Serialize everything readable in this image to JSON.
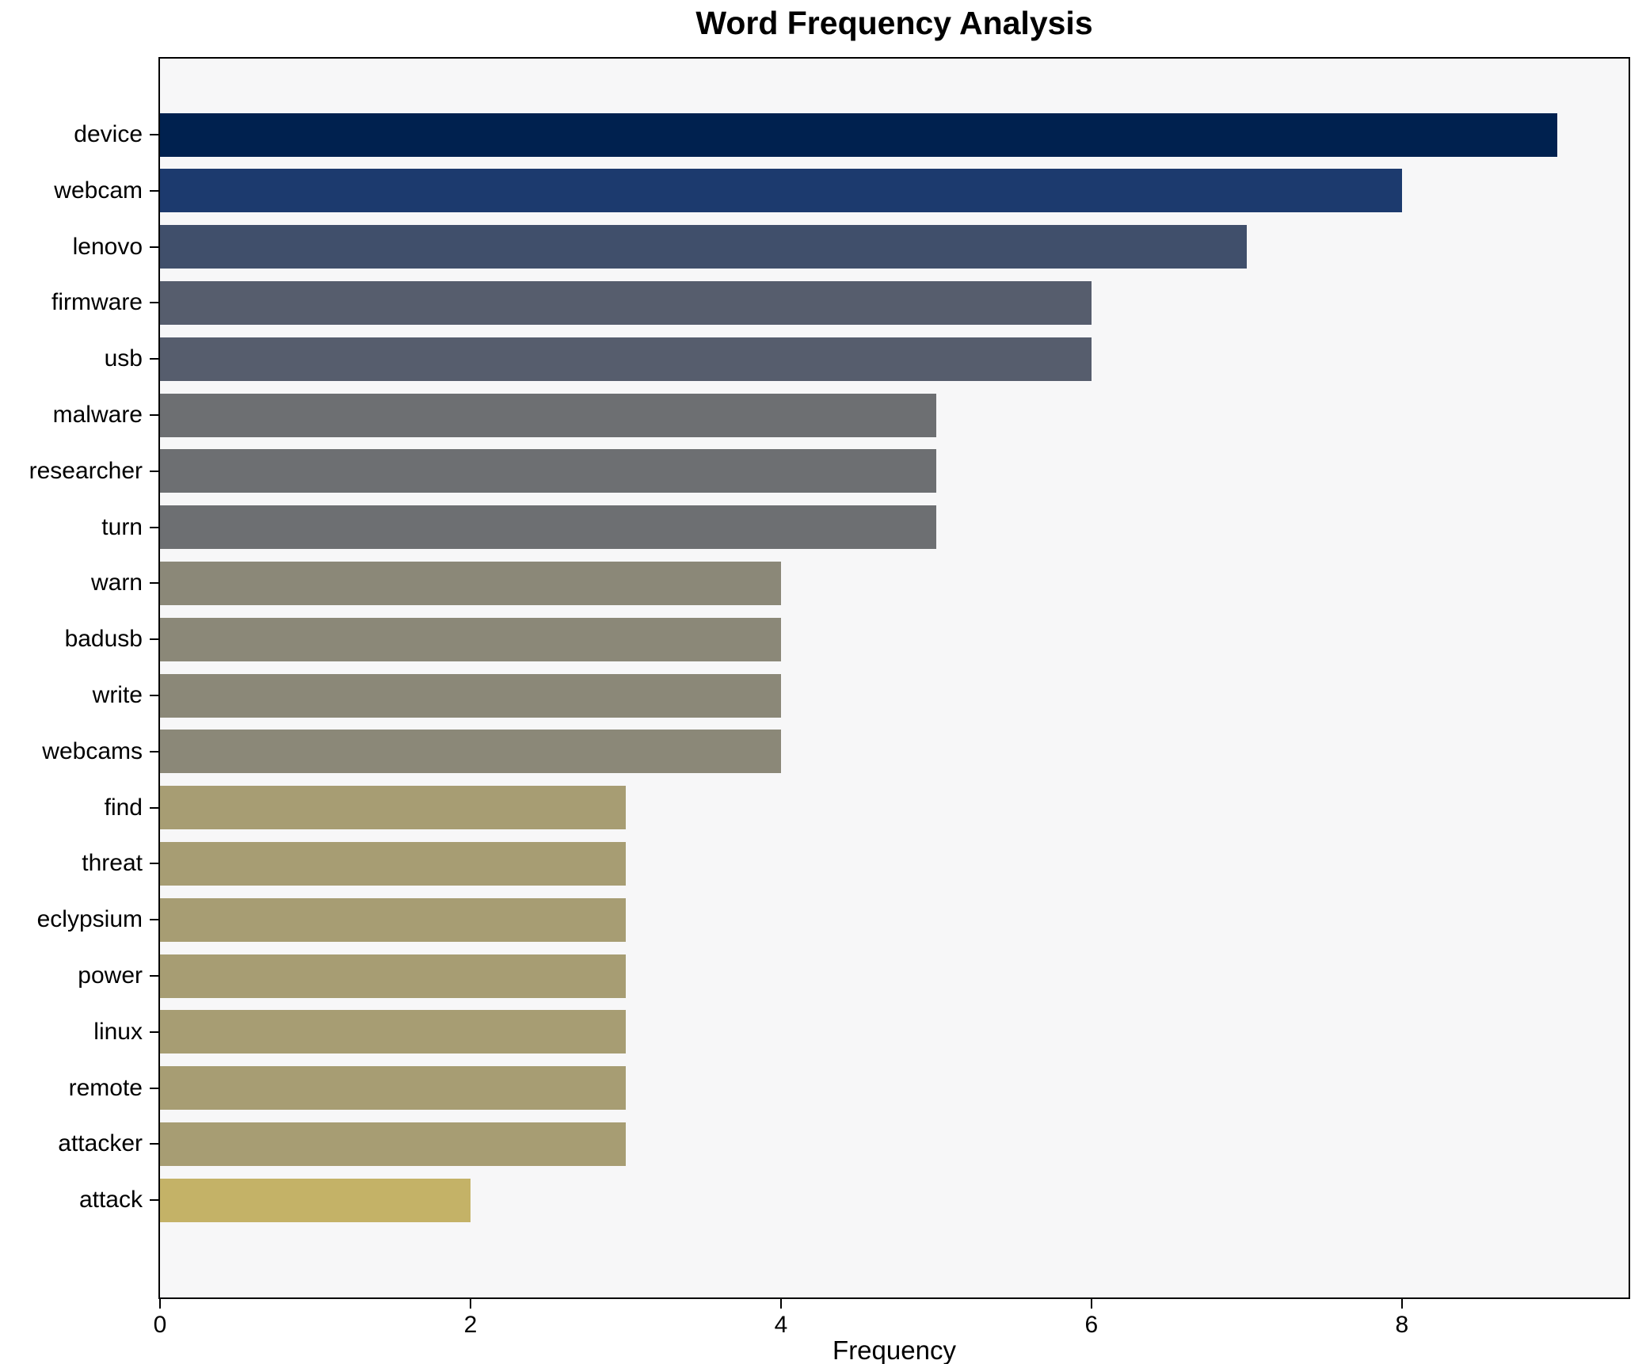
{
  "chart_data": {
    "type": "bar",
    "orientation": "horizontal",
    "title": "Word Frequency Analysis",
    "xlabel": "Frequency",
    "categories": [
      "device",
      "webcam",
      "lenovo",
      "firmware",
      "usb",
      "malware",
      "researcher",
      "turn",
      "warn",
      "badusb",
      "write",
      "webcams",
      "find",
      "threat",
      "eclypsium",
      "power",
      "linux",
      "remote",
      "attacker",
      "attack"
    ],
    "values": [
      9,
      8,
      7,
      6,
      6,
      5,
      5,
      5,
      4,
      4,
      4,
      4,
      3,
      3,
      3,
      3,
      3,
      3,
      3,
      2
    ],
    "bar_colors": [
      "#00214f",
      "#1c3a6e",
      "#404f6b",
      "#565d6d",
      "#565d6d",
      "#6d6f72",
      "#6d6f72",
      "#6d6f72",
      "#8b8878",
      "#8b8878",
      "#8b8878",
      "#8b8878",
      "#a79d73",
      "#a79d73",
      "#a79d73",
      "#a79d73",
      "#a79d73",
      "#a79d73",
      "#a79d73",
      "#c4b267"
    ],
    "xticks": [
      0,
      2,
      4,
      6,
      8
    ],
    "xlim": [
      0,
      9.46
    ],
    "grid": false,
    "legend": "none",
    "plot_bg": "#f7f7f8",
    "figure_bg": "#ffffff"
  }
}
